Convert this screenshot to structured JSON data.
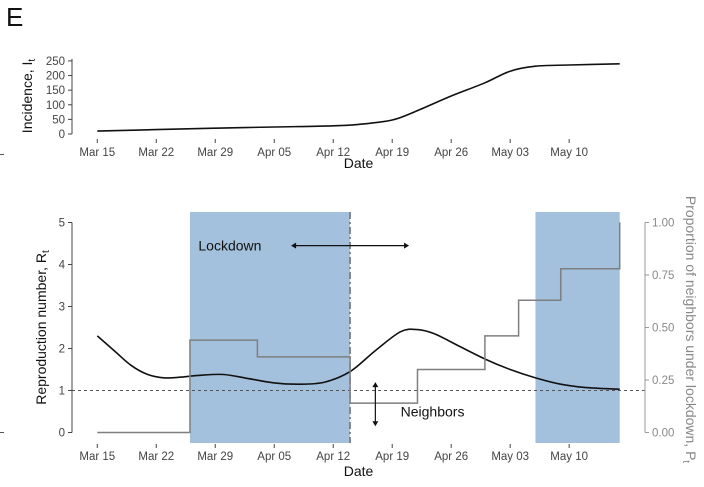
{
  "panel_label": "E",
  "chart_data": [
    {
      "type": "line",
      "title": "",
      "xlabel": "Date",
      "ylabel_main": "Incidence, I",
      "ylabel_sub": "t",
      "xlim": [
        "2020-03-12",
        "2020-05-19"
      ],
      "ylim": [
        0,
        260
      ],
      "yticks": [
        0,
        50,
        100,
        150,
        200,
        250
      ],
      "xticks": [
        "2020-03-15",
        "2020-03-22",
        "2020-03-29",
        "2020-04-05",
        "2020-04-12",
        "2020-04-19",
        "2020-04-26",
        "2020-05-03",
        "2020-05-10"
      ],
      "xtick_labels": [
        "Mar 15",
        "Mar 22",
        "Mar 29",
        "Apr 05",
        "Apr 12",
        "Apr 19",
        "Apr 26",
        "May 03",
        "May 10"
      ],
      "ytick_labels": [
        "0",
        "50",
        "100",
        "150",
        "200",
        "250"
      ],
      "grid": false,
      "series": [
        {
          "color": "#111111",
          "x": [
            "2020-03-15",
            "2020-03-22",
            "2020-03-29",
            "2020-04-05",
            "2020-04-12",
            "2020-04-15",
            "2020-04-19",
            "2020-04-22",
            "2020-04-26",
            "2020-04-30",
            "2020-05-03",
            "2020-05-06",
            "2020-05-10",
            "2020-05-16"
          ],
          "y": [
            10,
            15,
            20,
            24,
            28,
            33,
            48,
            80,
            130,
            175,
            215,
            232,
            236,
            240
          ]
        }
      ]
    },
    {
      "type": "line",
      "title": "",
      "xlabel": "Date",
      "ylabel_main": "Reproduction number, R",
      "ylabel_sub": "t",
      "y2label_main": "Proportion of neighbors under lockdown, P",
      "y2label_sub": "t",
      "xlim": [
        "2020-03-12",
        "2020-05-19"
      ],
      "ylim": [
        -0.25,
        5.25
      ],
      "y2lim": [
        -0.05,
        1.05
      ],
      "yticks": [
        0,
        1,
        2,
        3,
        4,
        5
      ],
      "ytick_labels": [
        "0",
        "1",
        "2",
        "3",
        "4",
        "5"
      ],
      "y2ticks": [
        0,
        0.25,
        0.5,
        0.75,
        1.0
      ],
      "y2tick_labels": [
        "0.00",
        "0.25",
        "0.50",
        "0.75",
        "1.00"
      ],
      "xticks": [
        "2020-03-15",
        "2020-03-22",
        "2020-03-29",
        "2020-04-05",
        "2020-04-12",
        "2020-04-19",
        "2020-04-26",
        "2020-05-03",
        "2020-05-10"
      ],
      "xtick_labels": [
        "Mar 15",
        "Mar 22",
        "Mar 29",
        "Apr 05",
        "Apr 12",
        "Apr 19",
        "Apr 26",
        "May 03",
        "May 10"
      ],
      "grid": false,
      "reference_line": {
        "y": 1,
        "style": "dashed",
        "color": "#555555"
      },
      "vline": {
        "x": "2020-04-14",
        "style": "dash-dot",
        "color": "#666666"
      },
      "shaded_regions": [
        {
          "from": "2020-03-26",
          "to": "2020-04-14",
          "color": "#a3c0dc"
        },
        {
          "from": "2020-05-06",
          "to": "2020-05-16",
          "color": "#a3c0dc"
        }
      ],
      "annotations": [
        {
          "text": "Lockdown",
          "x": "2020-03-27",
          "y": 4.45,
          "arrow": {
            "x_from": "2020-04-07",
            "x_to": "2020-04-21",
            "y": 4.45,
            "double": true
          }
        },
        {
          "text": "Neighbors",
          "x": "2020-04-20",
          "y": 0.5,
          "arrow": {
            "x": "2020-04-17",
            "y_from": 1.2,
            "y_to": 0.15,
            "double": true
          }
        }
      ],
      "series": [
        {
          "name_axis": "left",
          "color": "#111111",
          "x": [
            "2020-03-15",
            "2020-03-17",
            "2020-03-19",
            "2020-03-21",
            "2020-03-23",
            "2020-03-25",
            "2020-03-27",
            "2020-03-30",
            "2020-04-02",
            "2020-04-05",
            "2020-04-08",
            "2020-04-11",
            "2020-04-14",
            "2020-04-17",
            "2020-04-20",
            "2020-04-22",
            "2020-04-24",
            "2020-04-27",
            "2020-04-30",
            "2020-05-03",
            "2020-05-06",
            "2020-05-09",
            "2020-05-12",
            "2020-05-16"
          ],
          "y": [
            2.3,
            1.95,
            1.6,
            1.38,
            1.3,
            1.32,
            1.36,
            1.38,
            1.28,
            1.18,
            1.15,
            1.2,
            1.45,
            1.95,
            2.4,
            2.45,
            2.35,
            2.05,
            1.75,
            1.5,
            1.3,
            1.15,
            1.07,
            1.03
          ]
        },
        {
          "name_axis": "right",
          "color": "#7f7f7f",
          "step": true,
          "x": [
            "2020-03-15",
            "2020-03-26",
            "2020-04-03",
            "2020-04-14",
            "2020-04-22",
            "2020-04-30",
            "2020-05-04",
            "2020-05-06",
            "2020-05-09",
            "2020-05-16"
          ],
          "y": [
            0.0,
            0.44,
            0.36,
            0.14,
            0.3,
            0.46,
            0.63,
            0.63,
            0.78,
            1.0
          ]
        }
      ]
    }
  ]
}
